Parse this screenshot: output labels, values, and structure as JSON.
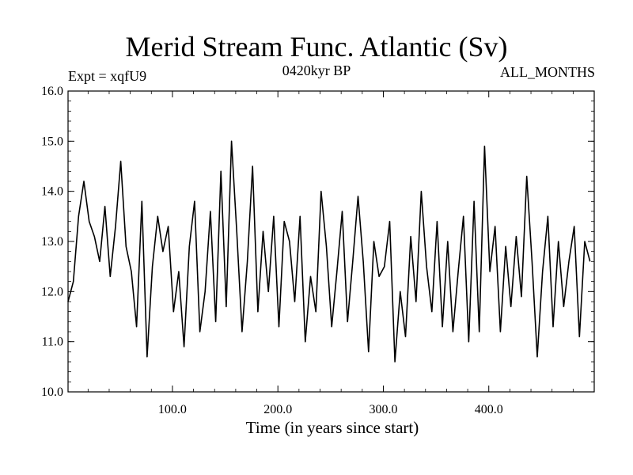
{
  "header": {
    "title": "Merid Stream Func. Atlantic (Sv)",
    "subtitle": "0420kyr BP",
    "experiment": "Expt = xqfU9",
    "months": "ALL_MONTHS"
  },
  "chart_data": {
    "type": "line",
    "title": "Merid Stream Func. Atlantic (Sv)",
    "xlabel": "Time (in years since start)",
    "ylabel": "",
    "xlim": [
      1,
      500
    ],
    "ylim": [
      10.0,
      16.0
    ],
    "x_ticks": [
      100,
      200,
      300,
      400
    ],
    "x_tick_labels": [
      "100.0",
      "200.0",
      "300.0",
      "400.0"
    ],
    "y_ticks": [
      10,
      11,
      12,
      13,
      14,
      15,
      16
    ],
    "y_tick_labels": [
      "10.0",
      "11.0",
      "12.0",
      "13.0",
      "14.0",
      "15.0",
      "16.0"
    ],
    "grid": false,
    "color": "#000000",
    "series": [
      {
        "name": "Merid Stream Func. Atlantic",
        "x_start": 1,
        "x_step": 5,
        "values": [
          11.8,
          12.2,
          13.5,
          14.2,
          13.4,
          13.1,
          12.6,
          13.7,
          12.3,
          13.3,
          14.6,
          12.9,
          12.4,
          11.3,
          13.8,
          10.7,
          12.5,
          13.5,
          12.8,
          13.3,
          11.6,
          12.4,
          10.9,
          12.9,
          13.8,
          11.2,
          12.0,
          13.6,
          11.4,
          14.4,
          11.7,
          15.0,
          13.2,
          11.2,
          12.6,
          14.5,
          11.6,
          13.2,
          12.0,
          13.5,
          11.3,
          13.4,
          13.0,
          11.8,
          13.5,
          11.0,
          12.3,
          11.6,
          14.0,
          12.9,
          11.3,
          12.4,
          13.6,
          11.4,
          12.6,
          13.9,
          12.6,
          10.8,
          13.0,
          12.3,
          12.5,
          13.4,
          10.6,
          12.0,
          11.1,
          13.1,
          11.8,
          14.0,
          12.5,
          11.6,
          13.4,
          11.3,
          13.0,
          11.2,
          12.4,
          13.5,
          11.0,
          13.8,
          11.2,
          14.9,
          12.4,
          13.3,
          11.2,
          12.9,
          11.7,
          13.1,
          11.9,
          14.3,
          12.6,
          10.7,
          12.4,
          13.5,
          11.3,
          13.0,
          11.7,
          12.6,
          13.3,
          11.1,
          13.0,
          12.6
        ]
      }
    ]
  }
}
